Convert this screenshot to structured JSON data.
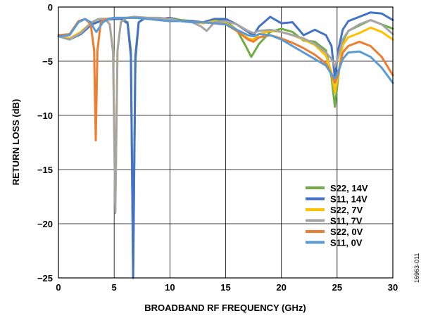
{
  "figure_id": "16963-011",
  "chart_data": {
    "type": "line",
    "title": "",
    "xlabel": "BROADBAND RF FREQUENCY (GHz)",
    "ylabel": "RETURN LOSS (dB)",
    "xlim": [
      0,
      30
    ],
    "ylim": [
      -25,
      0
    ],
    "x_ticks": [
      "0",
      "5",
      "10",
      "15",
      "20",
      "25",
      "30"
    ],
    "y_ticks": [
      "0",
      "−5",
      "−10",
      "−15",
      "−20",
      "−25"
    ],
    "grid": true,
    "legend_position": "lower-right",
    "series": [
      {
        "name": "S22, 14V",
        "color": "#70AD47",
        "x": [
          0,
          1,
          2,
          3,
          4,
          5,
          5.6,
          6.2,
          6.5,
          6.7,
          6.9,
          7.2,
          7.8,
          9,
          10,
          11,
          12,
          13,
          14,
          15,
          16,
          16.8,
          17.3,
          18,
          19,
          20,
          21,
          22,
          23,
          24,
          24.5,
          24.8,
          25.1,
          25.5,
          26,
          27,
          28,
          29,
          30
        ],
        "y": [
          -2.6,
          -3,
          -2.5,
          -1.6,
          -1.2,
          -1.1,
          -1.1,
          -1.4,
          -4,
          -24,
          -5,
          -1.4,
          -1,
          -1.1,
          -1,
          -1.2,
          -1.3,
          -1.5,
          -1.1,
          -1.3,
          -2.1,
          -3.6,
          -4.6,
          -3.4,
          -2.3,
          -2,
          -2.3,
          -3.1,
          -3.2,
          -4,
          -6.5,
          -9.2,
          -6.5,
          -3.2,
          -2.2,
          -1.7,
          -1.2,
          -1.6,
          -2
        ]
      },
      {
        "name": "S11, 14V",
        "color": "#4472C4",
        "x": [
          0,
          1,
          2,
          3,
          4,
          5,
          5.6,
          6.2,
          6.5,
          6.7,
          6.9,
          7.2,
          7.8,
          9,
          10,
          11,
          12,
          13,
          14,
          15,
          16,
          17,
          17.5,
          18,
          19,
          20,
          21,
          22,
          23,
          24,
          24.5,
          24.8,
          25.1,
          25.5,
          26,
          27,
          28,
          29,
          30
        ],
        "y": [
          -2.7,
          -3,
          -2.5,
          -1.6,
          -1.2,
          -1.1,
          -1.1,
          -1.5,
          -4.5,
          -25,
          -4.5,
          -1.4,
          -1,
          -1.1,
          -1,
          -1.3,
          -1.3,
          -1.4,
          -1.1,
          -1.1,
          -1.6,
          -2.3,
          -2.6,
          -1.8,
          -0.9,
          -1.5,
          -1.4,
          -2.6,
          -2.1,
          -2.6,
          -3.6,
          -6.6,
          -4,
          -2.1,
          -1.3,
          -0.9,
          -0.5,
          -0.6,
          -1.2
        ]
      },
      {
        "name": "S22, 7V",
        "color": "#FFC000",
        "x": [
          0,
          1,
          2,
          3,
          3.6,
          4.2,
          4.6,
          4.9,
          5.1,
          5.3,
          5.6,
          6.1,
          6.8,
          8,
          9,
          10,
          11,
          12,
          13,
          14,
          15,
          16,
          17,
          17.5,
          18,
          19,
          20,
          21,
          22,
          23,
          24,
          24.5,
          24.8,
          25.1,
          25.5,
          26,
          27,
          28,
          29,
          30
        ],
        "y": [
          -2.6,
          -2.9,
          -2.3,
          -1.4,
          -1.1,
          -1.1,
          -1.6,
          -4,
          -18.3,
          -4,
          -1.4,
          -1,
          -0.9,
          -1,
          -1,
          -1.1,
          -1.3,
          -1.4,
          -1.5,
          -1.3,
          -1.5,
          -2.1,
          -2.9,
          -3,
          -2.5,
          -2.2,
          -2.3,
          -2.6,
          -3,
          -3.5,
          -4.5,
          -6,
          -7.9,
          -6.2,
          -3.5,
          -2.8,
          -2.4,
          -1.9,
          -2.3,
          -3
        ]
      },
      {
        "name": "S11, 7V",
        "color": "#A5A5A5",
        "x": [
          0,
          1,
          2,
          3,
          3.6,
          4.2,
          4.6,
          4.9,
          5.1,
          5.3,
          5.6,
          6.1,
          6.8,
          8,
          9,
          10,
          11,
          12,
          12.8,
          13.3,
          14,
          15,
          16,
          17,
          17.5,
          18,
          19,
          20,
          21,
          22,
          23,
          24,
          24.5,
          24.8,
          25.1,
          25.5,
          26,
          27,
          28,
          29,
          30
        ],
        "y": [
          -2.7,
          -3,
          -2.4,
          -1.4,
          -1.1,
          -1.1,
          -1.6,
          -4.2,
          -19,
          -4,
          -1.4,
          -1,
          -0.9,
          -1,
          -1,
          -1.1,
          -1.3,
          -1.4,
          -1.8,
          -2.2,
          -1.4,
          -1.3,
          -1.6,
          -2.2,
          -2.4,
          -2.2,
          -2.1,
          -2.3,
          -2.6,
          -2.9,
          -3.4,
          -4.2,
          -4.8,
          -5.5,
          -4.6,
          -3,
          -2.2,
          -1.6,
          -1.2,
          -1.6,
          -2.5
        ]
      },
      {
        "name": "S22, 0V",
        "color": "#ED7D31",
        "x": [
          0,
          1,
          1.8,
          2.4,
          2.9,
          3.2,
          3.35,
          3.5,
          3.8,
          4.3,
          5,
          6,
          7,
          8,
          9,
          10,
          11,
          12,
          13,
          14,
          15,
          16,
          17,
          17.5,
          18,
          19,
          20,
          21,
          22,
          23,
          24,
          24.5,
          24.8,
          25.1,
          25.5,
          26,
          27,
          28,
          29,
          30
        ],
        "y": [
          -2.6,
          -2.5,
          -1.3,
          -1.1,
          -1.6,
          -4,
          -12.3,
          -4,
          -1.4,
          -1.1,
          -1,
          -1,
          -1,
          -1.1,
          -1.2,
          -1.3,
          -1.3,
          -1.4,
          -1.4,
          -1.5,
          -1.6,
          -2.2,
          -3,
          -3.2,
          -2.8,
          -2.6,
          -2.9,
          -3.3,
          -3.8,
          -4.4,
          -5.2,
          -6.2,
          -7,
          -6.2,
          -4.2,
          -3.6,
          -3.2,
          -3.6,
          -4.6,
          -6.3
        ]
      },
      {
        "name": "S11, 0V",
        "color": "#5B9BD5",
        "x": [
          0,
          1,
          1.8,
          2.4,
          2.9,
          3.2,
          3.4,
          3.6,
          4,
          4.5,
          5,
          6,
          7,
          8,
          9,
          10,
          11,
          12,
          13,
          14,
          15,
          16,
          17,
          17.5,
          18,
          19,
          20,
          21,
          22,
          23,
          24,
          24.5,
          24.8,
          25.1,
          25.5,
          26,
          27,
          28,
          29,
          30
        ],
        "y": [
          -2.7,
          -2.6,
          -1.4,
          -1.1,
          -1.4,
          -2,
          -2.3,
          -2,
          -1.4,
          -1.1,
          -1,
          -1,
          -1,
          -1.1,
          -1.2,
          -1.3,
          -1.3,
          -1.4,
          -1.4,
          -1.5,
          -1.6,
          -2.1,
          -2.6,
          -2.7,
          -2.5,
          -2.6,
          -3,
          -3.6,
          -4.2,
          -4.8,
          -5.4,
          -6.2,
          -6.6,
          -6,
          -4.8,
          -4.2,
          -4.1,
          -4.6,
          -5.6,
          -7
        ]
      }
    ]
  }
}
